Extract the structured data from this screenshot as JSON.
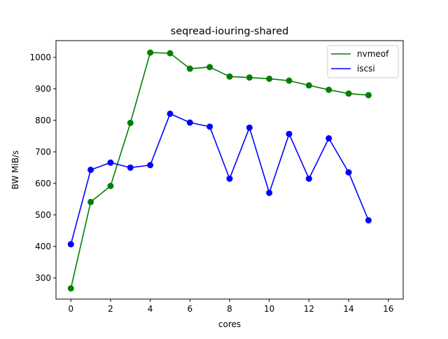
{
  "chart_data": {
    "type": "line",
    "title": "seqread-iouring-shared",
    "xlabel": "cores",
    "ylabel": "BW MiB/s",
    "xlim": [
      -0.75,
      16.75
    ],
    "ylim": [
      233,
      1053
    ],
    "xticks": [
      0,
      2,
      4,
      6,
      8,
      10,
      12,
      14,
      16
    ],
    "yticks": [
      300,
      400,
      500,
      600,
      700,
      800,
      900,
      1000
    ],
    "grid": false,
    "legend_position": "top-right",
    "x": [
      0,
      1,
      2,
      3,
      4,
      5,
      6,
      7,
      8,
      9,
      10,
      11,
      12,
      13,
      14,
      15
    ],
    "series": [
      {
        "name": "nvmeof",
        "color": "#008000",
        "values": [
          267,
          541,
          592,
          792,
          1015,
          1013,
          964,
          969,
          939,
          936,
          932,
          926,
          911,
          897,
          885,
          880
        ]
      },
      {
        "name": "iscsi",
        "color": "#0000ff",
        "values": [
          407,
          643,
          666,
          650,
          658,
          821,
          793,
          780,
          615,
          777,
          570,
          757,
          615,
          743,
          635,
          483
        ]
      }
    ]
  }
}
